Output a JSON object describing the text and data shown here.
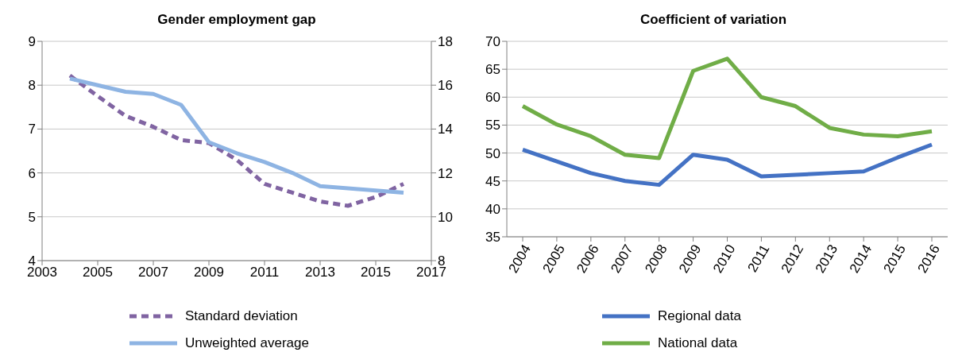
{
  "chart_data": [
    {
      "type": "line",
      "title": "Gender employment gap",
      "x": [
        2004,
        2005,
        2006,
        2007,
        2008,
        2009,
        2010,
        2011,
        2012,
        2013,
        2014,
        2015,
        2016
      ],
      "xlim": [
        2003,
        2017
      ],
      "xticks": [
        2003,
        2005,
        2007,
        2009,
        2011,
        2013,
        2015,
        2017
      ],
      "ylim": [
        4,
        9
      ],
      "yticks": [
        4,
        5,
        6,
        7,
        8,
        9
      ],
      "y2lim": [
        8,
        18
      ],
      "y2ticks": [
        8,
        10,
        12,
        14,
        16,
        18
      ],
      "grid": "y",
      "legend": "bottom",
      "marker": "none",
      "series": [
        {
          "name": "Standard deviation",
          "color": "#8064a2",
          "line_style": "dashed",
          "values": [
            8.22,
            7.75,
            7.3,
            7.05,
            6.75,
            6.68,
            6.3,
            5.75,
            5.55,
            5.35,
            5.25,
            5.45,
            5.75
          ]
        },
        {
          "name": "Unweighted average",
          "color": "#8eb4e3",
          "axis": "y2",
          "values": [
            16.3,
            16.0,
            15.7,
            15.6,
            15.1,
            13.4,
            12.9,
            12.5,
            12.0,
            11.4,
            11.3,
            11.2,
            11.1
          ]
        }
      ]
    },
    {
      "type": "line",
      "title": "Coefficient of variation",
      "categories": [
        "2004",
        "2005",
        "2006",
        "2007",
        "2008",
        "2009",
        "2010",
        "2011",
        "2012",
        "2013",
        "2014",
        "2015",
        "2016"
      ],
      "ylim": [
        35,
        70
      ],
      "yticks": [
        35,
        40,
        45,
        50,
        55,
        60,
        65,
        70
      ],
      "grid": "y",
      "legend": "bottom",
      "marker": "none",
      "series": [
        {
          "name": "Regional data",
          "color": "#4472c4",
          "values": [
            50.6,
            48.5,
            46.4,
            45.0,
            44.3,
            49.7,
            48.8,
            45.8,
            46.1,
            46.4,
            46.7,
            49.2,
            51.5
          ]
        },
        {
          "name": "National data",
          "color": "#70ad47",
          "values": [
            58.4,
            55.1,
            53.0,
            49.7,
            49.1,
            64.7,
            66.9,
            60.0,
            58.4,
            54.5,
            53.3,
            53.0,
            53.9
          ]
        }
      ]
    }
  ]
}
